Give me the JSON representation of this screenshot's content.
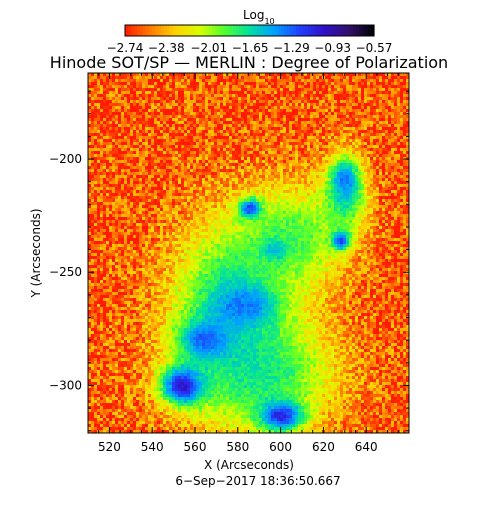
{
  "chart_data": {
    "type": "heatmap",
    "title": "Hinode SOT/SP — MERLIN : Degree of Polarization",
    "xlabel": "X (Arcseconds)",
    "ylabel": "Y (Arcseconds)",
    "xlim": [
      510,
      660
    ],
    "ylim": [
      -321,
      -162
    ],
    "xticks": [
      520,
      540,
      560,
      580,
      600,
      620,
      640
    ],
    "xtick_labels": [
      "520",
      "540",
      "560",
      "580",
      "600",
      "620",
      "640"
    ],
    "yticks": [
      -200,
      -250,
      -300
    ],
    "ytick_labels": [
      "−200",
      "−250",
      "−300"
    ],
    "colorbar": {
      "label_main": "Log",
      "label_sub": "10",
      "range": [
        -2.74,
        -0.57
      ],
      "ticks": [
        -2.74,
        -2.38,
        -2.01,
        -1.65,
        -1.29,
        -0.93,
        -0.57
      ],
      "tick_labels": [
        "−2.74",
        "−2.38",
        "−2.01",
        "−1.65",
        "−1.29",
        "−0.93",
        "−0.57"
      ],
      "colors": [
        "#ff1a00",
        "#ff7a00",
        "#ffd000",
        "#d8ff00",
        "#50ff30",
        "#00e0a0",
        "#00a0ff",
        "#2040ff",
        "#3010c8",
        "#30106a",
        "#000000"
      ]
    },
    "timestamp": "6−Sep−2017 18:36:50.667",
    "background_level": -2.6,
    "features": [
      {
        "kind": "spot",
        "x": 567,
        "y": -280,
        "rx": 14,
        "ry": 10,
        "level": -0.6
      },
      {
        "kind": "spot",
        "x": 583,
        "y": -265,
        "rx": 14,
        "ry": 9,
        "level": -0.6
      },
      {
        "kind": "spot",
        "x": 600,
        "y": -313,
        "rx": 12,
        "ry": 8,
        "level": -0.65
      },
      {
        "kind": "spot",
        "x": 630,
        "y": -210,
        "rx": 6,
        "ry": 9,
        "level": -0.75
      },
      {
        "kind": "spot",
        "x": 586,
        "y": -222,
        "rx": 6,
        "ry": 5,
        "level": -0.8
      },
      {
        "kind": "spot",
        "x": 597,
        "y": -240,
        "rx": 6,
        "ry": 5,
        "level": -0.8
      },
      {
        "kind": "spot",
        "x": 628,
        "y": -236,
        "rx": 5,
        "ry": 5,
        "level": -0.8
      },
      {
        "kind": "spot",
        "x": 555,
        "y": -300,
        "rx": 12,
        "ry": 10,
        "level": -0.7
      },
      {
        "kind": "plage",
        "x": 578,
        "y": -265,
        "rx": 32,
        "ry": 42,
        "level": -1.4
      },
      {
        "kind": "plage",
        "x": 605,
        "y": -235,
        "rx": 28,
        "ry": 26,
        "level": -1.7
      },
      {
        "kind": "plage",
        "x": 590,
        "y": -295,
        "rx": 40,
        "ry": 28,
        "level": -1.6
      },
      {
        "kind": "plage",
        "x": 630,
        "y": -215,
        "rx": 12,
        "ry": 20,
        "level": -1.5
      }
    ]
  }
}
